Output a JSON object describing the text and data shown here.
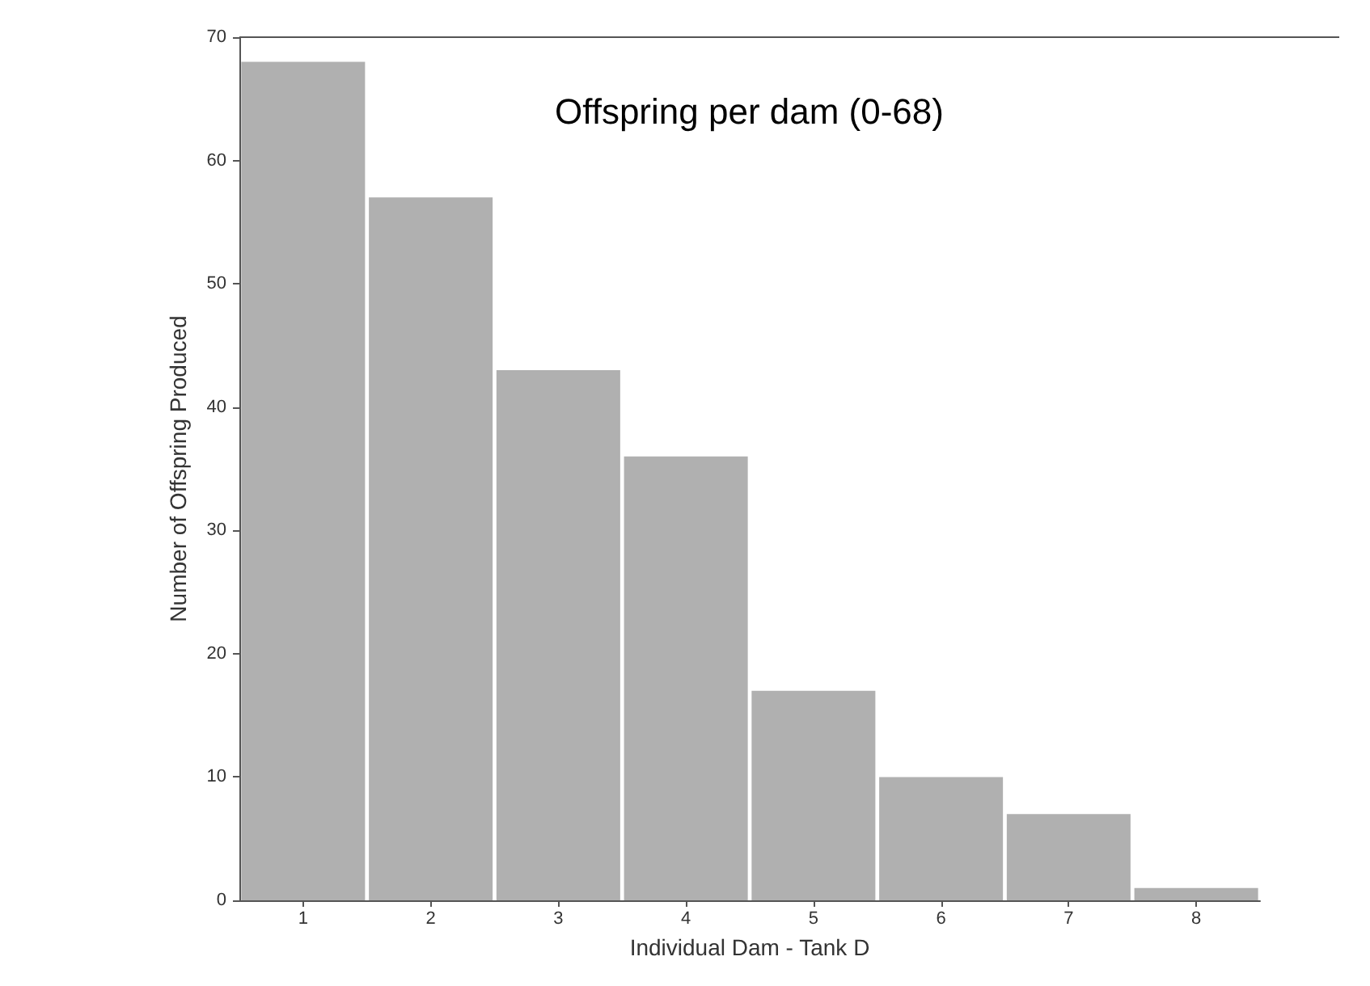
{
  "chart_data": {
    "type": "bar",
    "xlabel": "Individual Dam - Tank D",
    "ylabel": "Number of Offspring Produced",
    "annotations": [
      "Offspring per dam (0-68)"
    ],
    "categories": [
      "1",
      "2",
      "3",
      "4",
      "5",
      "6",
      "7",
      "8"
    ],
    "values": [
      68,
      57,
      43,
      36,
      17,
      10,
      7,
      1
    ],
    "color": "#b0b0b0",
    "ylim": [
      0,
      70
    ],
    "yticks": [
      0,
      10,
      20,
      30,
      40,
      50,
      60,
      70
    ],
    "grid": false
  }
}
